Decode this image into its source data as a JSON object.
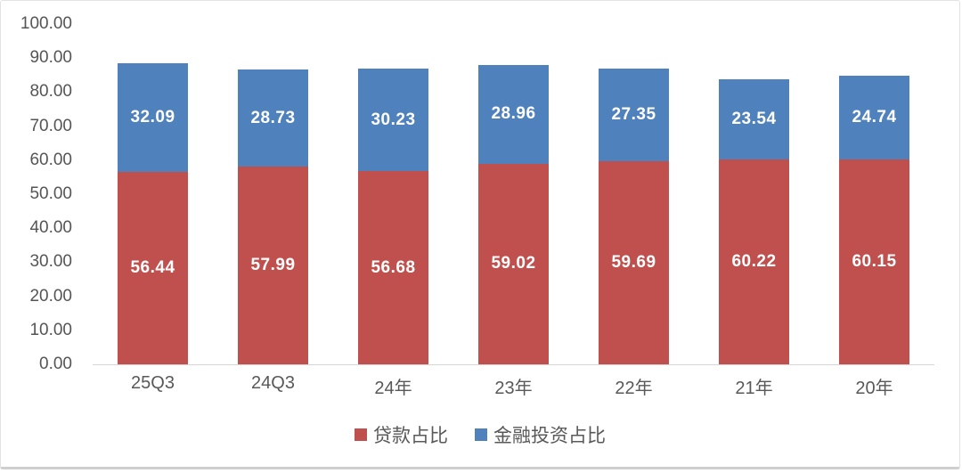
{
  "chart_data": {
    "type": "bar",
    "stacked": true,
    "categories": [
      "25Q3",
      "24Q3",
      "24年",
      "23年",
      "22年",
      "21年",
      "20年"
    ],
    "series": [
      {
        "name": "贷款占比",
        "color": "#C0504D",
        "values": [
          56.44,
          57.99,
          56.68,
          59.02,
          59.69,
          60.22,
          60.15
        ]
      },
      {
        "name": "金融投资占比",
        "color": "#4F81BD",
        "values": [
          32.09,
          28.73,
          30.23,
          28.96,
          27.35,
          23.54,
          24.74
        ]
      }
    ],
    "title": "",
    "xlabel": "",
    "ylabel": "",
    "ylim": [
      0,
      100
    ],
    "ytick_step": 10,
    "ytick_labels": [
      "100.00",
      "90.00",
      "80.00",
      "70.00",
      "60.00",
      "50.00",
      "40.00",
      "30.00",
      "20.00",
      "10.00",
      "0.00"
    ],
    "grid": false,
    "legend_position": "bottom",
    "data_label_color": "#ffffff",
    "axis_text_color": "#595959",
    "axis_line_color": "#d6d6d6"
  }
}
